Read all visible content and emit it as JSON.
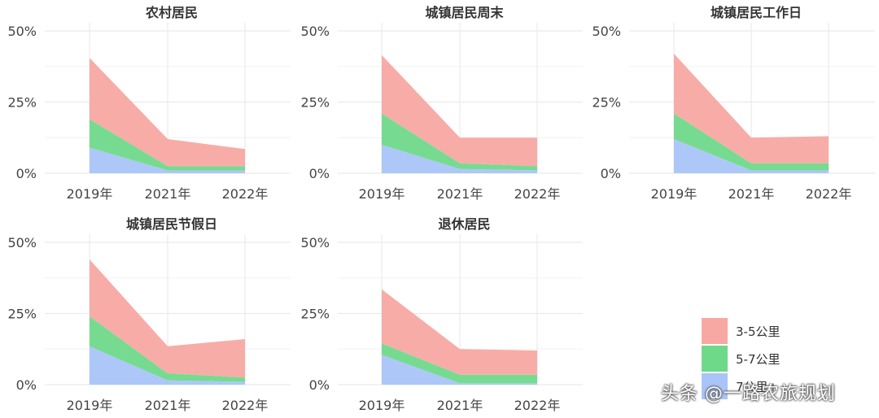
{
  "chart_data": [
    {
      "type": "area",
      "stacked": true,
      "title": "农村居民",
      "categories": [
        "2019年",
        "2021年",
        "2022年"
      ],
      "yticks": [
        "0%",
        "25%",
        "50%"
      ],
      "ylim": [
        0,
        50
      ],
      "grid": true,
      "series": [
        {
          "name": "7公里+",
          "values": [
            9.0,
            1.0,
            1.0
          ]
        },
        {
          "name": "5-7公里",
          "values": [
            10.0,
            1.5,
            1.5
          ]
        },
        {
          "name": "3-5公里",
          "values": [
            21.5,
            9.5,
            6.0
          ]
        }
      ]
    },
    {
      "type": "area",
      "stacked": true,
      "title": "城镇居民周末",
      "categories": [
        "2019年",
        "2021年",
        "2022年"
      ],
      "yticks": [
        "0%",
        "25%",
        "50%"
      ],
      "ylim": [
        0,
        50
      ],
      "grid": true,
      "series": [
        {
          "name": "7公里+",
          "values": [
            10.0,
            1.5,
            1.0
          ]
        },
        {
          "name": "5-7公里",
          "values": [
            11.0,
            2.0,
            1.5
          ]
        },
        {
          "name": "3-5公里",
          "values": [
            20.5,
            9.0,
            10.0
          ]
        }
      ]
    },
    {
      "type": "area",
      "stacked": true,
      "title": "城镇居民工作日",
      "categories": [
        "2019年",
        "2021年",
        "2022年"
      ],
      "yticks": [
        "0%",
        "25%",
        "50%"
      ],
      "ylim": [
        0,
        50
      ],
      "grid": true,
      "series": [
        {
          "name": "7公里+",
          "values": [
            12.0,
            1.0,
            1.0
          ]
        },
        {
          "name": "5-7公里",
          "values": [
            9.0,
            2.5,
            2.5
          ]
        },
        {
          "name": "3-5公里",
          "values": [
            21.0,
            9.0,
            9.5
          ]
        }
      ]
    },
    {
      "type": "area",
      "stacked": true,
      "title": "城镇居民节假日",
      "categories": [
        "2019年",
        "2021年",
        "2022年"
      ],
      "yticks": [
        "0%",
        "25%",
        "50%"
      ],
      "ylim": [
        0,
        50
      ],
      "grid": true,
      "series": [
        {
          "name": "7公里+",
          "values": [
            13.5,
            1.5,
            1.0
          ]
        },
        {
          "name": "5-7公里",
          "values": [
            10.5,
            2.5,
            1.5
          ]
        },
        {
          "name": "3-5公里",
          "values": [
            20.0,
            9.5,
            13.5
          ]
        }
      ]
    },
    {
      "type": "area",
      "stacked": true,
      "title": "退休居民",
      "categories": [
        "2019年",
        "2021年",
        "2022年"
      ],
      "yticks": [
        "0%",
        "25%",
        "50%"
      ],
      "ylim": [
        0,
        50
      ],
      "grid": true,
      "series": [
        {
          "name": "7公里+",
          "values": [
            10.5,
            0.5,
            0.5
          ]
        },
        {
          "name": "5-7公里",
          "values": [
            4.0,
            3.0,
            3.0
          ]
        },
        {
          "name": "3-5公里",
          "values": [
            19.0,
            9.0,
            8.5
          ]
        }
      ]
    }
  ],
  "legend": {
    "position": "bottom-right",
    "items": [
      {
        "label": "3-5公里",
        "color": "#f8a8a2"
      },
      {
        "label": "5-7公里",
        "color": "#6fd98a"
      },
      {
        "label": "7公里+",
        "color": "#a9c5f8"
      }
    ]
  },
  "colors": {
    "7公里+": "#a9c5f8",
    "5-7公里": "#6fd98a",
    "3-5公里": "#f8a8a2",
    "grid": "#ebebeb",
    "text": "#333333"
  },
  "watermark": "头条 @一路农旅规划"
}
